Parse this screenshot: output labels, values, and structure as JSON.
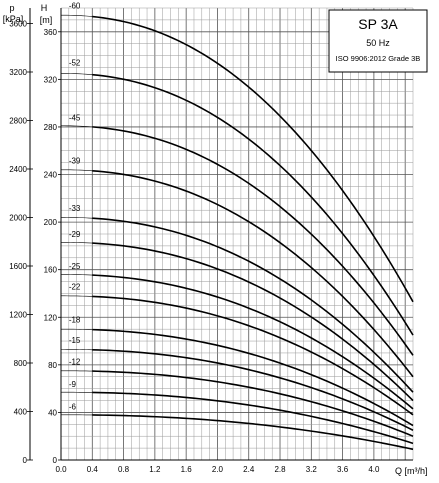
{
  "chart_data": {
    "type": "line",
    "legend": {
      "title": "SP 3A",
      "frequency": "50 Hz",
      "standard": "ISO 9906:2012 Grade 3B"
    },
    "x_axis": {
      "label": "Q [m³/h]",
      "range": [
        0,
        4.5
      ],
      "ticks": [
        "0.0",
        "0.4",
        "0.8",
        "1.2",
        "1.6",
        "2.0",
        "2.4",
        "2.8",
        "3.2",
        "3.6",
        "4.0"
      ]
    },
    "y_axis_head": {
      "label_top": "H",
      "label_unit": "[m]",
      "range": [
        0,
        380
      ],
      "ticks": [
        "0",
        "40",
        "80",
        "120",
        "160",
        "200",
        "240",
        "280",
        "320",
        "360"
      ]
    },
    "y_axis_pressure": {
      "label_top": "p",
      "label_unit": "[kPa]",
      "ticks": [
        "0",
        "400",
        "800",
        "1200",
        "1600",
        "2000",
        "2400",
        "2800",
        "3200",
        "3600"
      ]
    },
    "grid": true,
    "series": [
      {
        "name": "-6",
        "h0": 38,
        "h1": 9,
        "label_h": 45
      },
      {
        "name": "-9",
        "h0": 57,
        "h1": 14,
        "label_h": 64
      },
      {
        "name": "-12",
        "h0": 75,
        "h1": 20,
        "label_h": 83
      },
      {
        "name": "-15",
        "h0": 93,
        "h1": 25,
        "label_h": 101
      },
      {
        "name": "-18",
        "h0": 110,
        "h1": 29,
        "label_h": 118
      },
      {
        "name": "-22",
        "h0": 138,
        "h1": 38,
        "label_h": 146
      },
      {
        "name": "-25",
        "h0": 156,
        "h1": 43,
        "label_h": 163
      },
      {
        "name": "-29",
        "h0": 183,
        "h1": 50,
        "label_h": 190
      },
      {
        "name": "-33",
        "h0": 204,
        "h1": 57,
        "label_h": 212
      },
      {
        "name": "-39",
        "h0": 244,
        "h1": 70,
        "label_h": 252
      },
      {
        "name": "-45",
        "h0": 281,
        "h1": 88,
        "label_h": 288
      },
      {
        "name": "-52",
        "h0": 325,
        "h1": 105,
        "label_h": 334
      },
      {
        "name": "-60",
        "h0": 374,
        "h1": 133,
        "label_h": 382
      }
    ]
  }
}
